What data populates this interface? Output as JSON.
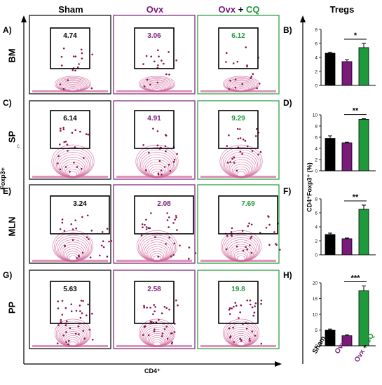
{
  "figure": {
    "columns": [
      {
        "name": "Sham",
        "color": "#000000"
      },
      {
        "name": "Ovx",
        "color": "#7a1a7a"
      },
      {
        "name_a": "Ovx",
        "name_plus": " + ",
        "name_b": "CQ",
        "color_a": "#7a1a7a",
        "color_b": "#1e9a3a"
      }
    ],
    "bar_panel_title": "Tregs",
    "y_axis_flow": "Foxp3+",
    "x_axis_flow": "CD4⁺",
    "bar_y_label": "CD4⁺Foxp3⁺ (%)",
    "stray_mark": "c",
    "rows": [
      {
        "letter": "A)",
        "tissue": "BM",
        "values": [
          "4.74",
          "3.06",
          "6.12"
        ]
      },
      {
        "letter": "C)",
        "tissue": "SP",
        "values": [
          "6.14",
          "4.91",
          "9.29"
        ]
      },
      {
        "letter": "E)",
        "tissue": "MLN",
        "values": [
          "3.24",
          "2.08",
          "7.69"
        ]
      },
      {
        "letter": "G)",
        "tissue": "PP",
        "values": [
          "5.63",
          "2.58",
          "19.8"
        ]
      }
    ],
    "bar_letters": [
      "B)",
      "D)",
      "F)",
      "H)"
    ],
    "bar_categories": {
      "sham": "Sham",
      "ovx": "Ovx",
      "ovxcq_a": "Ovx",
      "ovxcq_plus": " + ",
      "ovxcq_b": "CQ"
    }
  },
  "colors": {
    "sham": "#000000",
    "ovx": "#7a1a7a",
    "cq": "#1e9a3a",
    "contour": "#d0659a",
    "dots": "#8c1550"
  },
  "chart_data": [
    {
      "type": "bar",
      "categories": [
        "Sham",
        "Ovx",
        "Ovx + CQ"
      ],
      "values": [
        4.6,
        3.4,
        5.4
      ],
      "errors": [
        0.15,
        0.25,
        0.6
      ],
      "ylim": [
        0,
        8
      ],
      "yticks": [
        "0",
        "2",
        "4",
        "6",
        "8"
      ],
      "significance": "*",
      "ylabel": "CD4⁺Foxp3⁺ (%)"
    },
    {
      "type": "bar",
      "categories": [
        "Sham",
        "Ovx",
        "Ovx + CQ"
      ],
      "values": [
        5.8,
        5.0,
        9.2
      ],
      "errors": [
        0.45,
        0.1,
        0.1
      ],
      "ylim": [
        0,
        10
      ],
      "yticks": [
        "0",
        "2",
        "4",
        "6",
        "8",
        "10"
      ],
      "significance": "**",
      "ylabel": "CD4⁺Foxp3⁺ (%)"
    },
    {
      "type": "bar",
      "categories": [
        "Sham",
        "Ovx",
        "Ovx + CQ"
      ],
      "values": [
        2.9,
        2.3,
        6.5
      ],
      "errors": [
        0.2,
        0.1,
        0.6
      ],
      "ylim": [
        0,
        8
      ],
      "yticks": [
        "0",
        "2",
        "4",
        "6",
        "8"
      ],
      "significance": "**",
      "ylabel": "CD4⁺Foxp3⁺ (%)"
    },
    {
      "type": "bar",
      "categories": [
        "Sham",
        "Ovx",
        "Ovx + CQ"
      ],
      "values": [
        5.0,
        3.2,
        17.5
      ],
      "errors": [
        0.3,
        0.3,
        1.5
      ],
      "ylim": [
        0,
        20
      ],
      "yticks": [
        "0",
        "5",
        "10",
        "15",
        "20"
      ],
      "significance": "***",
      "ylabel": "CD4⁺Foxp3⁺ (%)"
    }
  ]
}
